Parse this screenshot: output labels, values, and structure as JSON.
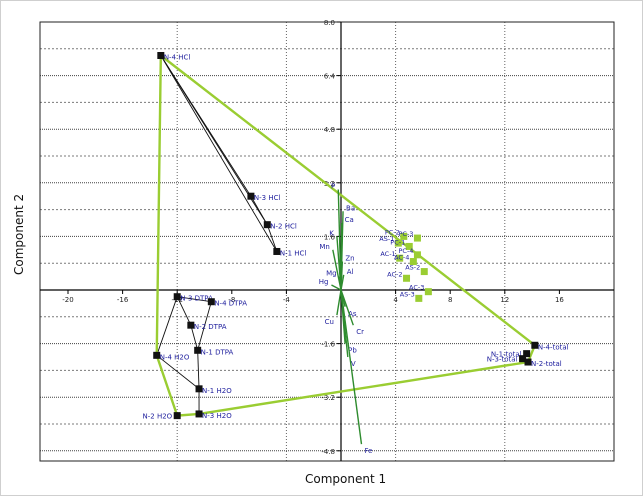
{
  "chart_data": {
    "type": "scatter",
    "title": "",
    "xlabel": "Component 1",
    "ylabel": "Component 2",
    "xlim": [
      -20,
      20
    ],
    "ylim": [
      -4.8,
      8
    ],
    "x_ticks": [
      -20,
      -16,
      -12,
      -8,
      -4,
      0,
      4,
      8,
      12,
      16
    ],
    "y_ticks": [
      8.0,
      6.4,
      4.8,
      3.2,
      1.6,
      0,
      -1.6,
      -3.2,
      -4.8
    ],
    "x_tick_labels": [
      "-20",
      "-16",
      "-12",
      "-8",
      "-4",
      "",
      "4",
      "8",
      "12",
      "16"
    ],
    "y_tick_labels": [
      "8.0",
      "6.4",
      "4.8",
      "3.2",
      "1.6",
      "",
      "-1.6",
      "-3.2",
      "-4.8"
    ],
    "grid": true,
    "colors": {
      "samples": "#111111",
      "sample_labels": "#1c1c9c",
      "loadings": "#2e8b2e",
      "hull": "#9acd32",
      "pca_points": "#9acd32"
    },
    "samples": [
      {
        "label": "N-4 HCl",
        "x": -13.2,
        "y": 7.0
      },
      {
        "label": "N-3 HCl",
        "x": -6.6,
        "y": 2.8
      },
      {
        "label": "N-2 HCl",
        "x": -5.4,
        "y": 1.95
      },
      {
        "label": "N-1 HCl",
        "x": -4.7,
        "y": 1.15
      },
      {
        "label": "N-3 DTPA",
        "x": -12.0,
        "y": -0.2
      },
      {
        "label": "N-4 DTPA",
        "x": -9.5,
        "y": -0.35
      },
      {
        "label": "N-2 DTPA",
        "x": -11.0,
        "y": -1.05
      },
      {
        "label": "N-1 DTPA",
        "x": -10.5,
        "y": -1.8
      },
      {
        "label": "N-4 H2O",
        "x": -13.5,
        "y": -1.95
      },
      {
        "label": "N-1 H2O",
        "x": -10.4,
        "y": -2.95
      },
      {
        "label": "N-2 H2O",
        "x": -12.0,
        "y": -3.75
      },
      {
        "label": "N-3 H2O",
        "x": -10.4,
        "y": -3.7
      },
      {
        "label": "N-4-total",
        "x": 14.2,
        "y": -1.65
      },
      {
        "label": "N-1-total",
        "x": 13.6,
        "y": -1.9
      },
      {
        "label": "N-3-total",
        "x": 13.3,
        "y": -2.05
      },
      {
        "label": "N-2-total",
        "x": 13.7,
        "y": -2.15
      }
    ],
    "pca_points": [
      {
        "label": "PC-2",
        "x": 4.6,
        "y": 1.6
      },
      {
        "label": "AS-1",
        "x": 4.2,
        "y": 1.4
      },
      {
        "label": "PC-3",
        "x": 5.6,
        "y": 1.55
      },
      {
        "label": "PC-1",
        "x": 5.0,
        "y": 1.3
      },
      {
        "label": "PC-4",
        "x": 5.6,
        "y": 1.05
      },
      {
        "label": "AC-1",
        "x": 4.3,
        "y": 0.95
      },
      {
        "label": "AC-4",
        "x": 5.3,
        "y": 0.85
      },
      {
        "label": "AS-2",
        "x": 6.1,
        "y": 0.55
      },
      {
        "label": "AC-2",
        "x": 4.8,
        "y": 0.35
      },
      {
        "label": "AC-3",
        "x": 6.4,
        "y": -0.05
      },
      {
        "label": "AS-3",
        "x": 5.7,
        "y": -0.25
      }
    ],
    "loadings": [
      {
        "label": "P",
        "x": -0.2,
        "y": 3.0
      },
      {
        "label": "Ba",
        "x": 0.15,
        "y": 2.35
      },
      {
        "label": "Ca",
        "x": 0.05,
        "y": 2.0
      },
      {
        "label": "K",
        "x": -0.3,
        "y": 1.6
      },
      {
        "label": "Mn",
        "x": -0.6,
        "y": 1.2
      },
      {
        "label": "Zn",
        "x": 0.1,
        "y": 0.85
      },
      {
        "label": "Al",
        "x": 0.2,
        "y": 0.45
      },
      {
        "label": "Mg",
        "x": -0.1,
        "y": 0.4
      },
      {
        "label": "Hg",
        "x": -0.7,
        "y": 0.15
      },
      {
        "label": "As",
        "x": 0.3,
        "y": -0.5
      },
      {
        "label": "Cu",
        "x": -0.3,
        "y": -0.75
      },
      {
        "label": "Cr",
        "x": 0.9,
        "y": -1.05
      },
      {
        "label": "Pb",
        "x": 0.3,
        "y": -1.6
      },
      {
        "label": "V",
        "x": 0.5,
        "y": -2.0
      },
      {
        "label": "Fe",
        "x": 1.5,
        "y": -4.6
      }
    ],
    "hull": [
      "N-4 HCl",
      "N-4-total",
      "N-2-total",
      "N-3 H2O",
      "N-2 H2O",
      "N-4 H2O"
    ],
    "connector_lines": [
      [
        "N-4 HCl",
        "N-3 HCl"
      ],
      [
        "N-4 HCl",
        "N-2 HCl"
      ],
      [
        "N-4 HCl",
        "N-1 HCl"
      ],
      [
        "N-3 HCl",
        "N-2 HCl"
      ],
      [
        "N-2 HCl",
        "N-1 HCl"
      ],
      [
        "N-4 H2O",
        "N-3 DTPA"
      ],
      [
        "N-3 DTPA",
        "N-4 DTPA"
      ],
      [
        "N-4 DTPA",
        "N-1 DTPA"
      ],
      [
        "N-3 DTPA",
        "N-2 DTPA"
      ],
      [
        "N-2 DTPA",
        "N-1 DTPA"
      ],
      [
        "N-1 DTPA",
        "N-1 H2O"
      ],
      [
        "N-4 H2O",
        "N-1 H2O"
      ],
      [
        "N-1 H2O",
        "N-3 H2O"
      ],
      [
        "N-4 H2O",
        "N-2 H2O"
      ],
      [
        "N-2 H2O",
        "N-3 H2O"
      ]
    ]
  }
}
